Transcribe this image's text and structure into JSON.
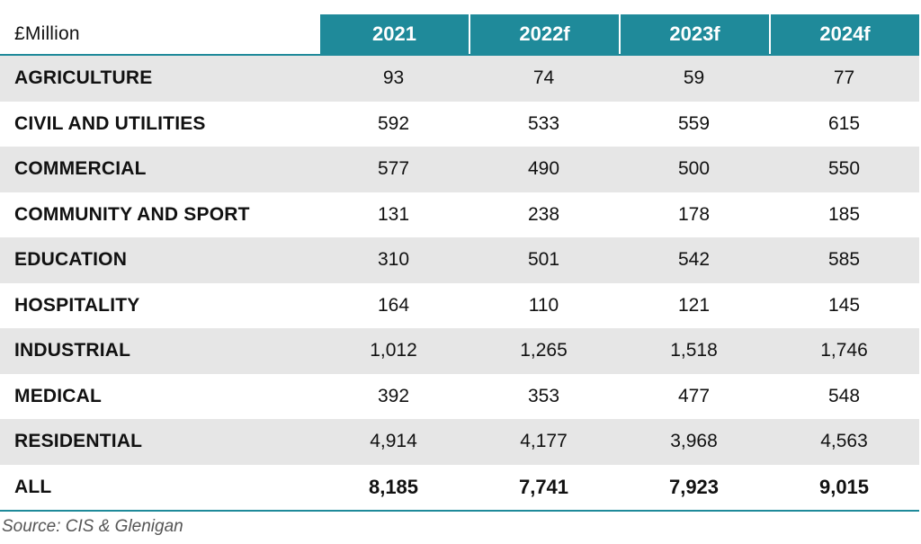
{
  "table": {
    "corner_label": "£Million",
    "columns": [
      "2021",
      "2022f",
      "2023f",
      "2024f"
    ]
  },
  "chart_data": {
    "type": "table",
    "columns": [
      "2021",
      "2022f",
      "2023f",
      "2024f"
    ],
    "rows": [
      {
        "label": "AGRICULTURE",
        "values": [
          "93",
          "74",
          "59",
          "77"
        ]
      },
      {
        "label": "CIVIL AND UTILITIES",
        "values": [
          "592",
          "533",
          "559",
          "615"
        ]
      },
      {
        "label": "COMMERCIAL",
        "values": [
          "577",
          "490",
          "500",
          "550"
        ]
      },
      {
        "label": "COMMUNITY AND SPORT",
        "values": [
          "131",
          "238",
          "178",
          "185"
        ]
      },
      {
        "label": "EDUCATION",
        "values": [
          "310",
          "501",
          "542",
          "585"
        ]
      },
      {
        "label": "HOSPITALITY",
        "values": [
          "164",
          "110",
          "121",
          "145"
        ]
      },
      {
        "label": "INDUSTRIAL",
        "values": [
          "1,012",
          "1,265",
          "1,518",
          "1,746"
        ]
      },
      {
        "label": "MEDICAL",
        "values": [
          "392",
          "353",
          "477",
          "548"
        ]
      },
      {
        "label": "RESIDENTIAL",
        "values": [
          "4,914",
          "4,177",
          "3,968",
          "4,563"
        ]
      }
    ],
    "total": {
      "label": "ALL",
      "values": [
        "8,185",
        "7,741",
        "7,923",
        "9,015"
      ]
    }
  },
  "source": "Source: CIS & Glenigan",
  "colors": {
    "header": "#1f8a9a",
    "shade": "#e6e6e6"
  }
}
